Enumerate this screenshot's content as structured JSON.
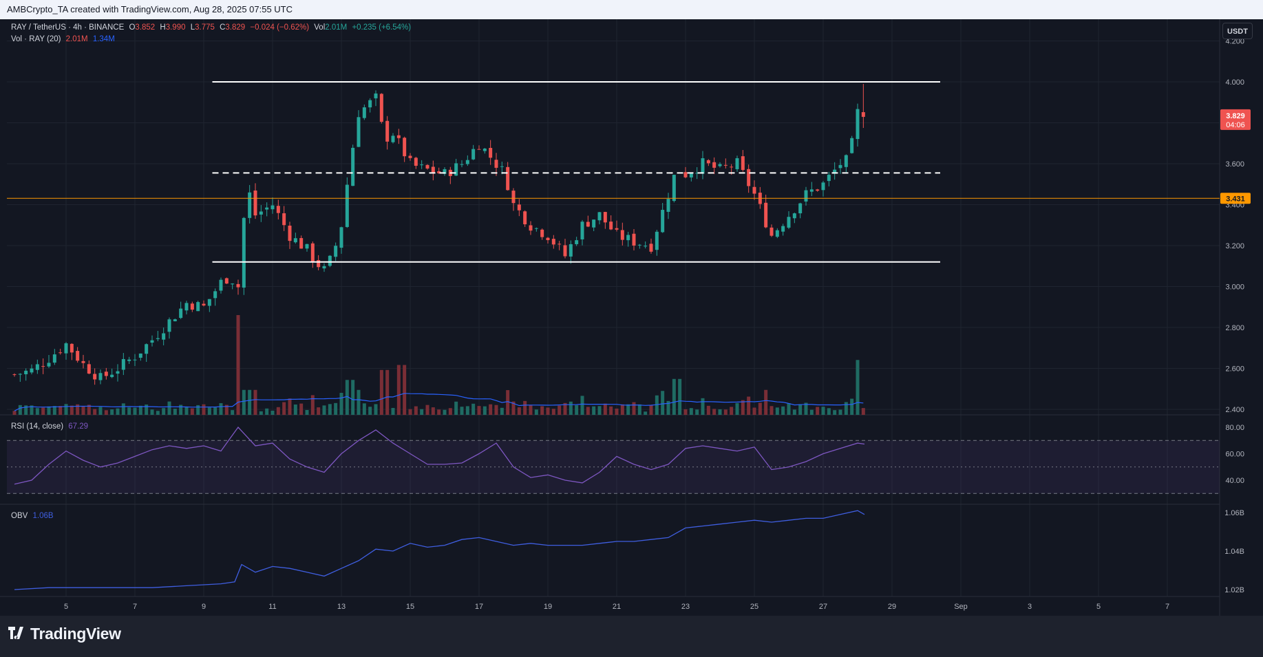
{
  "header": {
    "attribution": "AMBCrypto_TA created with TradingView.com, Aug 28, 2025 07:55 UTC"
  },
  "legend": {
    "symbol": "RAY / TetherUS · 4h · BINANCE",
    "open_label": "O",
    "open": "3.852",
    "high_label": "H",
    "high": "3.990",
    "low_label": "L",
    "low": "3.775",
    "close_label": "C",
    "close": "3.829",
    "change": "−0.024 (−0.62%)",
    "vol_label": "Vol",
    "vol": "2.01M",
    "vol_change": "+0.235 (+6.54%)",
    "vol_indicator": "Vol · RAY (20)",
    "vol_value": "2.01M",
    "vol_ma": "1.34M",
    "rsi_label": "RSI (14, close)",
    "rsi_value": "67.29",
    "obv_label": "OBV",
    "obv_value": "1.06B"
  },
  "currency_button": "USDT",
  "brand": "TradingView",
  "colors": {
    "background": "#131722",
    "up": "#26a69a",
    "down": "#ef5350",
    "volume_up": "#1f6b63",
    "volume_down": "#7a2e36",
    "rsi_line": "#7e57c2",
    "obv_line": "#3f5ee0",
    "vol_ma": "#2962ff",
    "level_line": "#ff9800",
    "range_lines": "#ffffff"
  },
  "chart_data": [
    {
      "type": "candlestick",
      "title": "RAY / TetherUS · 4h · BINANCE",
      "x_axis_ticks": [
        "5",
        "7",
        "9",
        "11",
        "13",
        "15",
        "17",
        "19",
        "21",
        "23",
        "25",
        "27",
        "29",
        "Sep",
        "3",
        "5",
        "7"
      ],
      "y_axis_ticks": [
        "4.200",
        "4.000",
        "3.800",
        "3.600",
        "3.400",
        "3.200",
        "3.000",
        "2.800",
        "2.600",
        "2.400"
      ],
      "ylim": [
        2.38,
        4.2
      ],
      "last_price_label": "3.829",
      "countdown_label": "04:06",
      "horizontal_level_label": "3.431",
      "horizontal_level": 3.431,
      "range_top": 4.0,
      "range_mid": 3.555,
      "range_bottom": 3.12,
      "date_start": "Aug 3 2025 12:00",
      "interval_hours": 4,
      "close_path_days": [
        3.5,
        4.0,
        4.5,
        5.0,
        5.5,
        6.0,
        6.5,
        7.0,
        7.5,
        8.0,
        8.5,
        9.0,
        9.5,
        9.75,
        10.0,
        10.25,
        10.5,
        11.0,
        11.5,
        12.0,
        12.25,
        12.5,
        12.75,
        13.0,
        13.25,
        13.5,
        14.0,
        14.25,
        14.5,
        15.0,
        15.25,
        15.5,
        16.0,
        16.5,
        17.0,
        17.5,
        17.75,
        18.0,
        18.5,
        19.0,
        19.5,
        20.0,
        20.5,
        21.0,
        21.5,
        22.0,
        22.5,
        22.75,
        23.0,
        23.5,
        24.0,
        24.5,
        25.0,
        25.25,
        25.5,
        25.75,
        26.0,
        26.5,
        27.0,
        27.5,
        27.75,
        28.0,
        28.1,
        28.2
      ],
      "close_path_prices": [
        2.57,
        2.59,
        2.65,
        2.72,
        2.62,
        2.55,
        2.6,
        2.66,
        2.74,
        2.83,
        2.92,
        2.9,
        3.02,
        3.05,
        3.0,
        3.5,
        3.35,
        3.4,
        3.25,
        3.18,
        3.12,
        3.08,
        3.15,
        3.3,
        3.6,
        3.85,
        3.92,
        3.72,
        3.75,
        3.6,
        3.58,
        3.57,
        3.55,
        3.6,
        3.7,
        3.6,
        3.55,
        3.4,
        3.3,
        3.25,
        3.15,
        3.3,
        3.35,
        3.25,
        3.22,
        3.2,
        3.45,
        3.58,
        3.55,
        3.6,
        3.57,
        3.6,
        3.45,
        3.35,
        3.25,
        3.3,
        3.35,
        3.45,
        3.5,
        3.6,
        3.62,
        3.85,
        3.83,
        3.83
      ]
    },
    {
      "type": "bar",
      "title": "Vol · RAY (20)",
      "series": [
        {
          "name": "Vol · RAY (20)",
          "last": "2.01M"
        },
        {
          "name": "MA",
          "last": "1.34M"
        }
      ],
      "spike_days": [
        10.0,
        13.25,
        14.25,
        14.75,
        22.75,
        28.0
      ],
      "spike_rel_heights": [
        1.0,
        0.35,
        0.45,
        0.5,
        0.36,
        0.55
      ]
    },
    {
      "type": "line",
      "title": "RSI (14, close)",
      "last_value": "67.29",
      "y_axis_ticks": [
        "80.00",
        "60.00",
        "40.00"
      ],
      "ylim": [
        27,
        86
      ],
      "bands": [
        70,
        50,
        30
      ],
      "days": [
        3.5,
        4.0,
        4.5,
        5.0,
        5.5,
        6.0,
        6.5,
        7.0,
        7.5,
        8.0,
        8.5,
        9.0,
        9.5,
        10.0,
        10.5,
        11.0,
        11.5,
        12.0,
        12.5,
        13.0,
        13.5,
        14.0,
        14.5,
        15.0,
        15.5,
        16.0,
        16.5,
        17.0,
        17.5,
        18.0,
        18.5,
        19.0,
        19.5,
        20.0,
        20.5,
        21.0,
        21.5,
        22.0,
        22.5,
        23.0,
        23.5,
        24.0,
        24.5,
        25.0,
        25.5,
        26.0,
        26.5,
        27.0,
        27.5,
        28.0,
        28.2
      ],
      "values": [
        37,
        40,
        52,
        62,
        55,
        50,
        53,
        58,
        63,
        66,
        64,
        66,
        62,
        80,
        66,
        68,
        56,
        50,
        46,
        60,
        70,
        78,
        68,
        60,
        52,
        52,
        53,
        60,
        68,
        50,
        42,
        44,
        40,
        38,
        46,
        58,
        52,
        48,
        52,
        64,
        66,
        64,
        62,
        65,
        48,
        50,
        54,
        60,
        64,
        68,
        67.29
      ]
    },
    {
      "type": "line",
      "title": "OBV",
      "last_value": "1.06B",
      "y_axis_ticks": [
        "1.06B",
        "1.04B",
        "1.02B"
      ],
      "ylim": [
        1.018,
        1.062
      ],
      "days": [
        3.5,
        4.5,
        5.5,
        6.5,
        7.5,
        8.5,
        9.5,
        9.9,
        10.1,
        10.5,
        11.0,
        11.5,
        12.0,
        12.5,
        13.0,
        13.5,
        14.0,
        14.5,
        15.0,
        15.5,
        16.0,
        16.5,
        17.0,
        17.5,
        18.0,
        18.5,
        19.0,
        19.5,
        20.0,
        20.5,
        21.0,
        21.5,
        22.0,
        22.5,
        23.0,
        23.5,
        24.0,
        24.5,
        25.0,
        25.5,
        26.0,
        26.5,
        27.0,
        27.5,
        28.0,
        28.2
      ],
      "values": [
        1.02,
        1.021,
        1.021,
        1.021,
        1.021,
        1.022,
        1.023,
        1.024,
        1.033,
        1.029,
        1.032,
        1.031,
        1.029,
        1.027,
        1.031,
        1.035,
        1.041,
        1.04,
        1.044,
        1.042,
        1.043,
        1.046,
        1.047,
        1.045,
        1.043,
        1.044,
        1.043,
        1.043,
        1.043,
        1.044,
        1.045,
        1.045,
        1.046,
        1.047,
        1.052,
        1.053,
        1.054,
        1.055,
        1.056,
        1.055,
        1.056,
        1.057,
        1.057,
        1.059,
        1.061,
        1.059
      ]
    }
  ]
}
